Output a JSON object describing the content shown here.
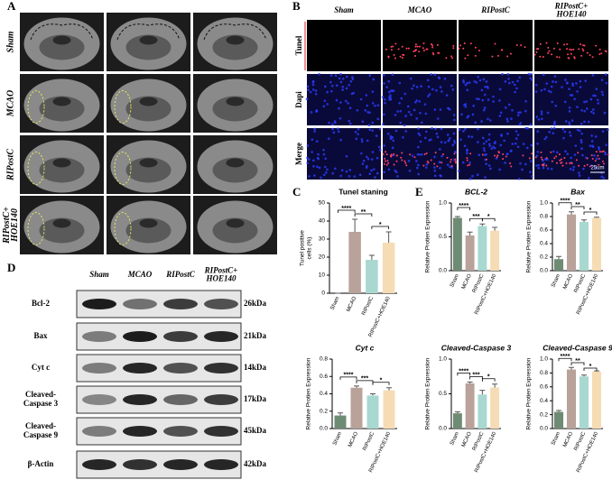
{
  "panel_labels": [
    "A",
    "B",
    "C",
    "D",
    "E"
  ],
  "mri": {
    "rows": [
      "Sham",
      "MCAO",
      "RIPostC",
      [
        "RIPostC+",
        "HOE140"
      ]
    ]
  },
  "tunel": {
    "columns": [
      "Sham",
      "MCAO",
      "RIPostC",
      [
        "RIPostC+",
        "HOE140"
      ]
    ],
    "rows": [
      "Tunel",
      "Dapi",
      "Merge"
    ],
    "scale_bar": "25um"
  },
  "western_blot": {
    "columns": [
      "Sham",
      "MCAO",
      "RIPostC",
      [
        "RIPostC+",
        "HOE140"
      ]
    ],
    "rows": [
      {
        "protein": "Bcl-2",
        "size": "26kDa"
      },
      {
        "protein": "Bax",
        "size": "21kDa"
      },
      {
        "protein": "Cyt c",
        "size": "14kDa"
      },
      {
        "protein": [
          "Cleaved-",
          "Caspase 3"
        ],
        "size": "17kDa"
      },
      {
        "protein": [
          "Cleaved-",
          "Caspase 9"
        ],
        "size": "45kDa"
      },
      {
        "protein": "β-Actin",
        "size": "42kDa"
      }
    ]
  },
  "chart_data": [
    {
      "type": "bar",
      "title": "Tunel staning",
      "ylabel": [
        "Tunel positive",
        "cells (%)"
      ],
      "categories": [
        "Sham",
        "MCAO",
        "RIPostC",
        "RIPostC+HOE140"
      ],
      "values": [
        0,
        34,
        18.5,
        28
      ],
      "errors": [
        0,
        7,
        2.5,
        6
      ],
      "colors": [
        "#6e8b74",
        "#b8a29a",
        "#a8d8d0",
        "#f5dcb4"
      ],
      "ylim": [
        0,
        50
      ],
      "yticks": [
        0,
        10,
        20,
        30,
        40,
        50
      ],
      "significance": [
        "****",
        "**",
        "*"
      ]
    },
    {
      "type": "bar",
      "title": "BCL-2",
      "ylabel": "Relative Protien Expression",
      "categories": [
        "Sham",
        "MCAO",
        "RIPostC",
        "RIPostC+HOE140"
      ],
      "values": [
        0.78,
        0.52,
        0.66,
        0.59
      ],
      "errors": [
        0.02,
        0.05,
        0.03,
        0.05
      ],
      "colors": [
        "#6e8b74",
        "#b8a29a",
        "#a8d8d0",
        "#f5dcb4"
      ],
      "ylim": [
        0,
        1.0
      ],
      "yticks": [
        {
          "value": 0,
          "label": "0.0"
        },
        0.5,
        {
          "value": 1,
          "label": "1.0"
        }
      ],
      "significance": [
        "****",
        "***",
        "*"
      ]
    },
    {
      "type": "bar",
      "title": "Bax",
      "ylabel": "Relative Protien Expression",
      "categories": [
        "Sham",
        "MCAO",
        "RIPostC",
        "RIPostC+HOE140"
      ],
      "values": [
        0.17,
        0.83,
        0.72,
        0.78
      ],
      "errors": [
        0.04,
        0.04,
        0.03,
        0.01
      ],
      "colors": [
        "#6e8b74",
        "#b8a29a",
        "#a8d8d0",
        "#f5dcb4"
      ],
      "ylim": [
        0,
        1.0
      ],
      "yticks": [
        {
          "value": 0,
          "label": "0.0"
        },
        0.2,
        0.4,
        0.6,
        0.8,
        {
          "value": 1,
          "label": "1.0"
        }
      ],
      "significance": [
        "****",
        "**",
        "*"
      ]
    },
    {
      "type": "bar",
      "title": "Cyt c",
      "ylabel": "Relative Protien Expression",
      "categories": [
        "Sham",
        "MCAO",
        "RIPostC",
        "RIPostC+HOE140"
      ],
      "values": [
        0.15,
        0.47,
        0.38,
        0.44
      ],
      "errors": [
        0.03,
        0.02,
        0.02,
        0.03
      ],
      "colors": [
        "#6e8b74",
        "#b8a29a",
        "#a8d8d0",
        "#f5dcb4"
      ],
      "ylim": [
        0,
        0.8
      ],
      "yticks": [
        {
          "value": 0,
          "label": "0.0"
        },
        0.2,
        0.4,
        0.6,
        0.8
      ],
      "significance": [
        "****",
        "***",
        "*"
      ]
    },
    {
      "type": "bar",
      "title": "Cleaved-Caspase 3",
      "ylabel": "Relative Protien Expression",
      "categories": [
        "Sham",
        "MCAO",
        "RIPostC",
        "RIPostC+HOE140"
      ],
      "values": [
        0.22,
        0.65,
        0.49,
        0.59
      ],
      "errors": [
        0.02,
        0.02,
        0.06,
        0.05
      ],
      "colors": [
        "#6e8b74",
        "#b8a29a",
        "#a8d8d0",
        "#f5dcb4"
      ],
      "ylim": [
        0,
        1.0
      ],
      "yticks": [
        {
          "value": 0,
          "label": "0.0"
        },
        0.5,
        {
          "value": 1,
          "label": "1.0"
        }
      ],
      "significance": [
        "****",
        "***",
        "*"
      ]
    },
    {
      "type": "bar",
      "title": "Cleaved-Caspase 9",
      "ylabel": "Relative Protien Expression",
      "categories": [
        "Sham",
        "MCAO",
        "RIPostC",
        "RIPostC+HOE140"
      ],
      "values": [
        0.24,
        0.85,
        0.75,
        0.82
      ],
      "errors": [
        0.02,
        0.03,
        0.02,
        0.01
      ],
      "colors": [
        "#6e8b74",
        "#b8a29a",
        "#a8d8d0",
        "#f5dcb4"
      ],
      "ylim": [
        0,
        1.0
      ],
      "yticks": [
        {
          "value": 0,
          "label": "0.0"
        },
        0.2,
        0.4,
        0.6,
        0.8,
        {
          "value": 1,
          "label": "1.0"
        }
      ],
      "significance": [
        "****",
        "**",
        "*"
      ]
    }
  ]
}
